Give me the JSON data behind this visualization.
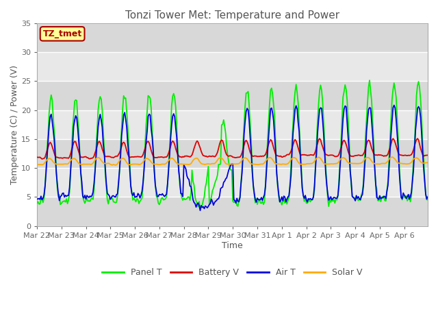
{
  "title": "Tonzi Tower Met: Temperature and Power",
  "xlabel": "Time",
  "ylabel": "Temperature (C) / Power (V)",
  "ylim": [
    0,
    35
  ],
  "yticks": [
    0,
    5,
    10,
    15,
    20,
    25,
    30,
    35
  ],
  "background_color": "#ffffff",
  "plot_bg_color": "#e8e8e8",
  "grid_color": "#ffffff",
  "legend_labels": [
    "Panel T",
    "Battery V",
    "Air T",
    "Solar V"
  ],
  "legend_colors": [
    "#00ee00",
    "#dd0000",
    "#0000dd",
    "#ffaa00"
  ],
  "annotation_text": "TZ_tmet",
  "annotation_color": "#aa0000",
  "annotation_bg": "#ffff99",
  "title_fontsize": 11,
  "axis_fontsize": 9,
  "tick_fontsize": 8,
  "figsize": [
    6.4,
    4.8
  ],
  "dpi": 100
}
